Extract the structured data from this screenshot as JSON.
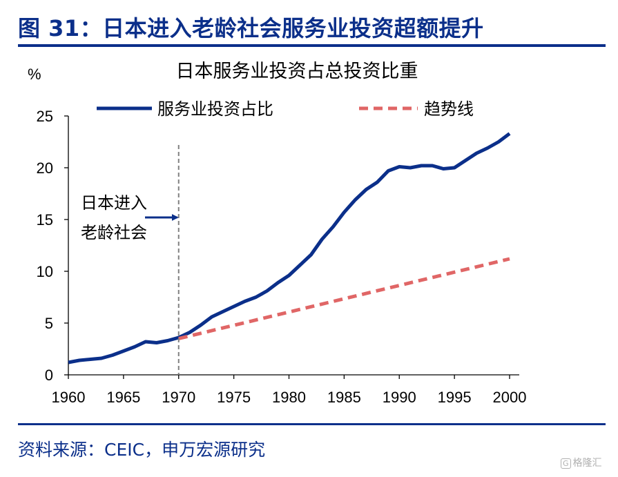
{
  "figure": {
    "title": "图 31：日本进入老龄社会服务业投资超额提升",
    "source": "资料来源：CEIC，申万宏源研究",
    "watermark": "格隆汇",
    "watermark_icon": "G"
  },
  "colors": {
    "title": "#0b2f8a",
    "series_line": "#0b2f8a",
    "trend_line": "#e06666",
    "marker_line": "#808080",
    "axis": "#000000",
    "text": "#000000"
  },
  "chart_data": {
    "type": "line",
    "title": "日本服务业投资占总投资比重",
    "ylabel": "%",
    "xlabel": "",
    "xlim": [
      1960,
      2000
    ],
    "ylim": [
      0,
      25
    ],
    "x_ticks": [
      1960,
      1965,
      1970,
      1975,
      1980,
      1985,
      1990,
      1995,
      2000
    ],
    "y_ticks": [
      0,
      5,
      10,
      15,
      20,
      25
    ],
    "grid": false,
    "legend_position": "top",
    "series": [
      {
        "name": "服务业投资占比",
        "style": "solid",
        "x": [
          1960,
          1961,
          1962,
          1963,
          1964,
          1965,
          1966,
          1967,
          1968,
          1969,
          1970,
          1971,
          1972,
          1973,
          1974,
          1975,
          1976,
          1977,
          1978,
          1979,
          1980,
          1981,
          1982,
          1983,
          1984,
          1985,
          1986,
          1987,
          1988,
          1989,
          1990,
          1991,
          1992,
          1993,
          1994,
          1995,
          1996,
          1997,
          1998,
          1999,
          2000
        ],
        "y": [
          1.2,
          1.4,
          1.5,
          1.6,
          1.9,
          2.3,
          2.7,
          3.2,
          3.1,
          3.3,
          3.6,
          4.1,
          4.8,
          5.6,
          6.1,
          6.6,
          7.1,
          7.5,
          8.1,
          8.9,
          9.6,
          10.6,
          11.6,
          13.1,
          14.3,
          15.7,
          16.9,
          17.9,
          18.6,
          19.7,
          20.1,
          20.0,
          20.2,
          20.2,
          19.9,
          20.0,
          20.7,
          21.4,
          21.9,
          22.5,
          23.3
        ]
      },
      {
        "name": "趋势线",
        "style": "dashed",
        "x": [
          1970,
          2000
        ],
        "y": [
          3.5,
          11.2
        ]
      }
    ],
    "annotations": [
      {
        "text_line1": "日本进入",
        "text_line2": "老龄社会",
        "x": 1970,
        "y": 15.2,
        "type": "vertical-dashed-line-with-arrow"
      }
    ]
  }
}
